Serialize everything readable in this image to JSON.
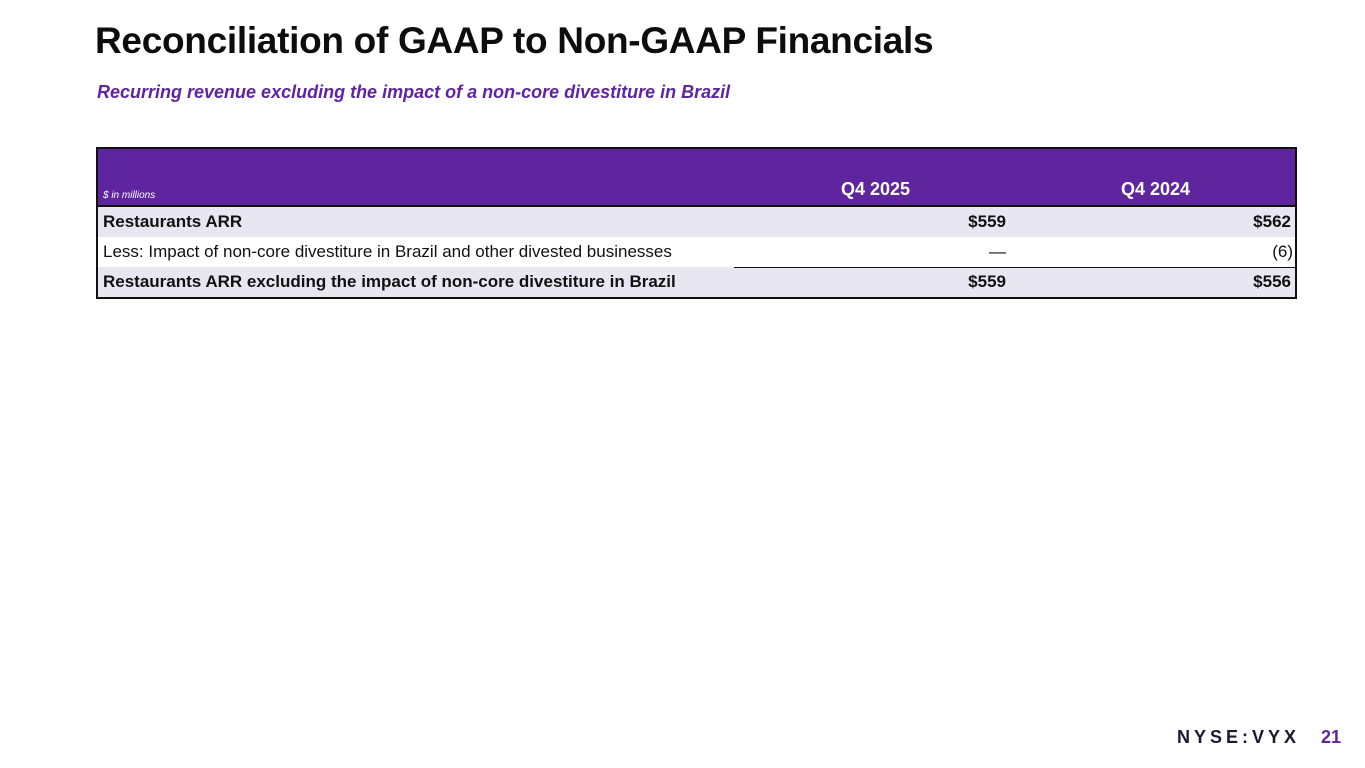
{
  "title": "Reconciliation of GAAP to Non-GAAP Financials",
  "subtitle": "Recurring revenue excluding the impact of a non-core divestiture in Brazil",
  "table": {
    "units": "$ in millions",
    "columns": [
      "Q4 2025",
      "Q4 2024"
    ],
    "rows": [
      {
        "label": "Restaurants ARR",
        "values": [
          "$559",
          "$562"
        ]
      },
      {
        "label": "Less: Impact of non-core divestiture in Brazil and other divested businesses",
        "values": [
          "—",
          "(6)"
        ]
      },
      {
        "label": "Restaurants ARR excluding the impact of non-core divestiture in Brazil",
        "values": [
          "$559",
          "$556"
        ]
      }
    ]
  },
  "footer": {
    "ticker": "NYSE:VYX",
    "page_number": "21"
  },
  "colors": {
    "accent": "#5f259f",
    "row_shade": "#e8e6f0"
  }
}
